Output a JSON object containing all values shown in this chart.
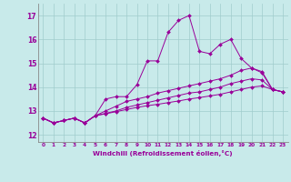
{
  "xlabel": "Windchill (Refroidissement éolien,°C)",
  "background_color": "#c8eaea",
  "grid_color": "#a0cccc",
  "line_color": "#990099",
  "x_ticks": [
    0,
    1,
    2,
    3,
    4,
    5,
    6,
    7,
    8,
    9,
    10,
    11,
    12,
    13,
    14,
    15,
    16,
    17,
    18,
    19,
    20,
    21,
    22,
    23
  ],
  "y_ticks": [
    12,
    13,
    14,
    15,
    16,
    17
  ],
  "ylim": [
    11.7,
    17.5
  ],
  "xlim": [
    -0.5,
    23.5
  ],
  "series": [
    [
      12.7,
      12.5,
      12.6,
      12.7,
      12.5,
      12.8,
      13.5,
      13.6,
      13.6,
      14.1,
      15.1,
      15.1,
      16.3,
      16.8,
      17.0,
      15.5,
      15.4,
      15.8,
      16.0,
      15.2,
      14.8,
      14.6,
      13.9,
      13.8
    ],
    [
      12.7,
      12.5,
      12.6,
      12.7,
      12.5,
      12.8,
      13.0,
      13.2,
      13.4,
      13.5,
      13.6,
      13.75,
      13.85,
      13.95,
      14.05,
      14.15,
      14.25,
      14.35,
      14.5,
      14.7,
      14.8,
      14.65,
      13.9,
      13.8
    ],
    [
      12.7,
      12.5,
      12.6,
      12.7,
      12.5,
      12.8,
      12.9,
      13.0,
      13.15,
      13.25,
      13.35,
      13.45,
      13.55,
      13.65,
      13.75,
      13.8,
      13.9,
      14.0,
      14.15,
      14.25,
      14.35,
      14.3,
      13.9,
      13.8
    ],
    [
      12.7,
      12.5,
      12.6,
      12.7,
      12.5,
      12.8,
      12.88,
      12.97,
      13.06,
      13.15,
      13.22,
      13.28,
      13.35,
      13.42,
      13.5,
      13.56,
      13.63,
      13.7,
      13.8,
      13.9,
      14.0,
      14.05,
      13.9,
      13.8
    ]
  ]
}
